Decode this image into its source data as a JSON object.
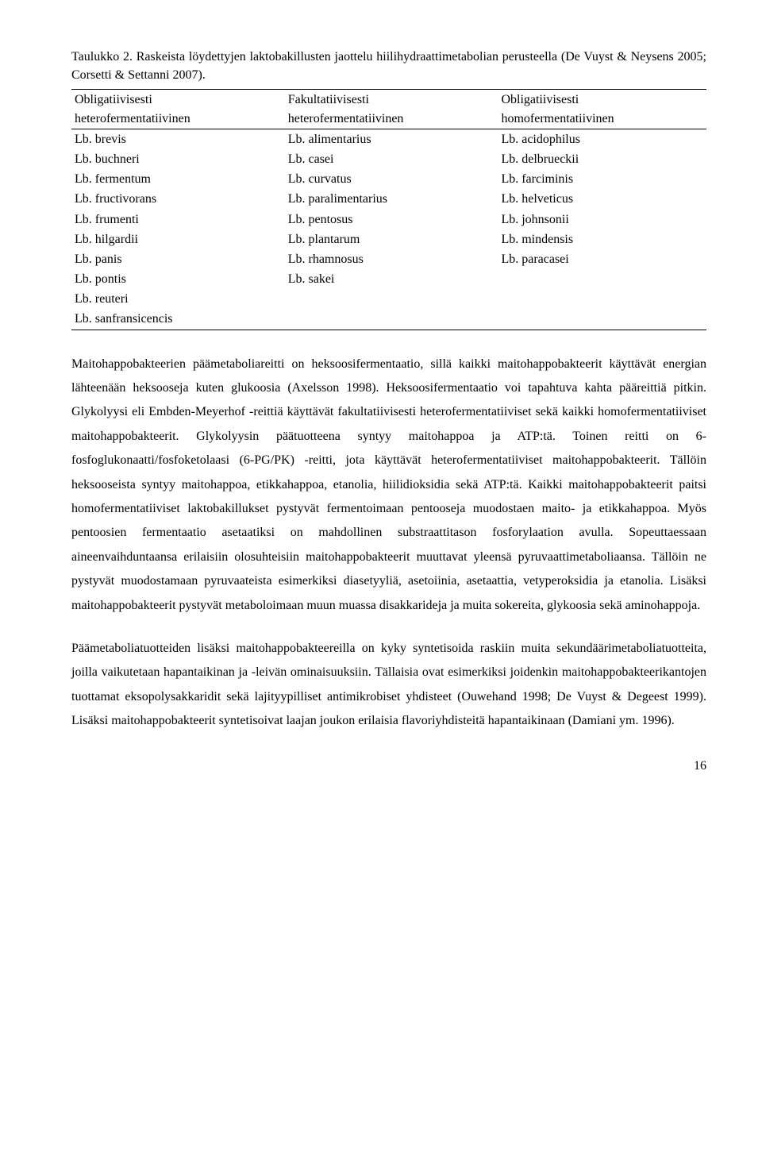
{
  "table": {
    "caption": "Taulukko 2. Raskeista löydettyjen laktobakillusten jaottelu hiilihydraattimetabolian perusteella (De Vuyst & Neysens 2005; Corsetti & Settanni 2007).",
    "columns": [
      {
        "line1": "Obligatiivisesti",
        "line2": "heterofermentatiivinen"
      },
      {
        "line1": "Fakultatiivisesti",
        "line2": "heterofermentatiivinen"
      },
      {
        "line1": "Obligatiivisesti",
        "line2": "homofermentatiivinen"
      }
    ],
    "rows": [
      [
        "Lb. brevis",
        "Lb. alimentarius",
        "Lb. acidophilus"
      ],
      [
        "Lb. buchneri",
        "Lb. casei",
        "Lb. delbrueckii"
      ],
      [
        "Lb. fermentum",
        "Lb. curvatus",
        "Lb. farciminis"
      ],
      [
        "Lb. fructivorans",
        "Lb. paralimentarius",
        "Lb. helveticus"
      ],
      [
        "Lb. frumenti",
        "Lb. pentosus",
        "Lb. johnsonii"
      ],
      [
        "Lb. hilgardii",
        "Lb. plantarum",
        "Lb. mindensis"
      ],
      [
        "Lb. panis",
        "Lb. rhamnosus",
        "Lb. paracasei"
      ],
      [
        "Lb. pontis",
        "Lb. sakei",
        ""
      ],
      [
        "Lb. reuteri",
        "",
        ""
      ],
      [
        "Lb. sanfransicencis",
        "",
        ""
      ]
    ]
  },
  "paragraphs": {
    "p1": "Maitohappobakteerien päämetaboliareitti on heksoosi­fermentaatio, sillä kaikki maitohappobakteerit käyttävät energian lähteenään heksooseja kuten glukoosia (Axelsson 1998). Heksoosifermentaatio voi tapahtuva kahta pääreittiä pitkin. Glykolyysi eli Embden-Meyerhof -reittiä käyttävät fakultatiivisesti heterofermentatiiviset sekä kaikki homofermentatiiviset maitohappobakteerit. Glykolyysin päätuotteena syntyy maitohappoa ja ATP:tä. Toinen reitti on 6-fosfoglukonaatti/fosfoketolaasi (6-PG/PK) -reitti, jota käyttävät heterofermentatiiviset maitohappobakteerit. Tällöin heksooseista syntyy maitohappoa, etikkahappoa, etanolia, hiilidioksidia sekä ATP:tä. Kaikki maitohappobakteerit paitsi homofermentatiiviset laktobakillukset pystyvät fermentoimaan pentooseja muodostaen maito- ja etikkahappoa. Myös pentoosien fermentaatio asetaatiksi on mahdollinen substraattitason fosforylaation avulla. Sopeuttaessaan aineenvaihduntaansa erilaisiin olosuhteisiin maitohappobakteerit muuttavat yleensä pyruvaattimetaboliaansa. Tällöin ne pystyvät muodostamaan pyruvaateista esimerkiksi diasetyyliä, asetoiinia, asetaattia, vetyperoksidia ja etanolia. Lisäksi maitohappobakteerit pystyvät metaboloimaan muun muassa disakkarideja ja muita sokereita, glykoosia sekä aminohappoja.",
    "p2": "Päämetaboliatuotteiden lisäksi maitohappobakteereilla on kyky syntetisoida raskiin muita sekundäärimetaboliatuotteita, joilla vaikutetaan hapantaikinan ja -leivän ominaisuuksiin. Tällaisia ovat esimerkiksi joidenkin maitohappobakteerikantojen tuottamat eksopolysakkaridit sekä lajityypilliset antimikrobiset yhdisteet (Ouwehand 1998; De Vuyst & Degeest 1999). Lisäksi maitohappobakteerit syntetisoivat laajan joukon erilaisia flavoriyhdisteitä hapantaikinaan (Damiani ym. 1996)."
  },
  "page_number": "16"
}
